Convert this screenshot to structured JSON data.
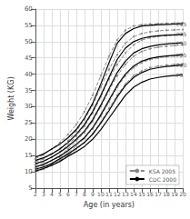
{
  "chart_data": {
    "type": "line",
    "xlabel": "Age (in years)",
    "ylabel": "Weight (KG)",
    "x": [
      2,
      3,
      4,
      5,
      6,
      7,
      8,
      9,
      10,
      11,
      12,
      13,
      14,
      15,
      16,
      17,
      18,
      19,
      20
    ],
    "xlim": [
      2,
      20
    ],
    "ylim": [
      5,
      60
    ],
    "xticks": [
      2,
      3,
      4,
      5,
      6,
      7,
      8,
      9,
      10,
      11,
      12,
      13,
      14,
      15,
      16,
      17,
      18,
      19,
      20
    ],
    "yticks": [
      5,
      10,
      15,
      20,
      25,
      30,
      35,
      40,
      45,
      50,
      55,
      60
    ],
    "grid": true,
    "legend": "lower right",
    "series": [
      {
        "name": "KSA 2005",
        "color": "#888888",
        "line_style": "dashed",
        "marker": "dot",
        "values": [
          14.0,
          15.2,
          17.0,
          19.0,
          21.5,
          24.5,
          28.5,
          33.5,
          39.5,
          45.5,
          50.5,
          53.5,
          54.8,
          55.2,
          55.4,
          55.5,
          55.6,
          55.7,
          55.8
        ]
      },
      {
        "name": "CDC 2000",
        "color": "#000000",
        "line_style": "solid",
        "values": [
          14.5,
          15.5,
          17.0,
          18.5,
          20.5,
          23.0,
          26.5,
          31.0,
          37.0,
          43.5,
          49.5,
          52.5,
          54.0,
          54.8,
          55.0,
          55.2,
          55.3,
          55.4,
          55.5
        ]
      },
      {
        "name": "KSA 2005",
        "color": "#888888",
        "line_style": "dashed",
        "marker": "dot",
        "values": [
          13.0,
          14.0,
          15.5,
          17.2,
          19.5,
          22.5,
          26.0,
          30.5,
          36.0,
          41.5,
          46.0,
          49.5,
          51.5,
          52.5,
          53.0,
          53.3,
          53.5,
          53.6,
          53.7
        ]
      },
      {
        "name": "CDC 2000",
        "color": "#000000",
        "line_style": "solid",
        "values": [
          13.5,
          14.3,
          15.5,
          17.0,
          19.0,
          21.5,
          24.5,
          28.5,
          33.5,
          39.0,
          44.5,
          48.0,
          50.0,
          51.0,
          51.5,
          51.8,
          52.0,
          52.1,
          52.2
        ]
      },
      {
        "name": "KSA 2005",
        "color": "#888888",
        "line_style": "dashed",
        "marker": "dot",
        "values": [
          12.0,
          13.0,
          14.5,
          16.2,
          18.2,
          21.0,
          24.0,
          28.0,
          33.0,
          38.5,
          43.0,
          46.5,
          49.0,
          50.5,
          51.2,
          51.6,
          51.8,
          52.0,
          52.1
        ]
      },
      {
        "name": "CDC 2000",
        "color": "#000000",
        "line_style": "solid",
        "values": [
          12.5,
          13.3,
          14.5,
          16.0,
          17.8,
          20.0,
          22.5,
          26.0,
          30.5,
          35.5,
          40.5,
          44.0,
          46.5,
          47.8,
          48.5,
          49.0,
          49.3,
          49.5,
          49.6
        ]
      },
      {
        "name": "KSA 2005",
        "color": "#888888",
        "line_style": "dashed",
        "marker": "dot",
        "values": [
          11.2,
          12.0,
          13.5,
          15.0,
          17.0,
          19.5,
          22.0,
          25.5,
          30.0,
          35.0,
          39.5,
          43.0,
          45.5,
          47.0,
          47.8,
          48.3,
          48.6,
          48.8,
          49.0
        ]
      },
      {
        "name": "CDC 2000",
        "color": "#000000",
        "line_style": "solid",
        "values": [
          11.5,
          12.3,
          13.5,
          14.8,
          16.5,
          18.5,
          20.5,
          23.5,
          27.5,
          32.0,
          36.5,
          40.0,
          42.5,
          44.0,
          44.8,
          45.3,
          45.6,
          45.8,
          46.0
        ]
      },
      {
        "name": "KSA 2005",
        "color": "#888888",
        "line_style": "dashed",
        "marker": "dot",
        "values": [
          10.5,
          11.3,
          12.5,
          14.2,
          15.8,
          18.0,
          20.2,
          23.2,
          27.0,
          31.5,
          36.0,
          39.5,
          42.0,
          43.5,
          44.5,
          45.0,
          45.4,
          45.6,
          45.8
        ]
      },
      {
        "name": "CDC 2000",
        "color": "#000000",
        "line_style": "solid",
        "values": [
          10.8,
          11.5,
          12.5,
          14.0,
          15.5,
          17.2,
          19.0,
          21.5,
          25.0,
          28.8,
          33.0,
          36.5,
          39.0,
          40.5,
          41.5,
          42.0,
          42.4,
          42.6,
          42.8
        ]
      },
      {
        "name": "KSA 2005",
        "color": "#888888",
        "line_style": "dashed",
        "marker": "dot",
        "values": [
          10.0,
          10.8,
          12.0,
          13.5,
          15.2,
          17.0,
          19.0,
          21.8,
          25.2,
          29.5,
          33.5,
          37.0,
          39.5,
          41.0,
          42.0,
          42.5,
          42.8,
          43.0,
          43.2
        ]
      },
      {
        "name": "CDC 2000",
        "color": "#000000",
        "line_style": "solid",
        "values": [
          10.2,
          11.0,
          12.0,
          13.2,
          14.8,
          16.2,
          17.8,
          20.0,
          23.0,
          26.5,
          30.0,
          33.5,
          36.0,
          37.5,
          38.5,
          39.0,
          39.4,
          39.6,
          39.8
        ]
      }
    ],
    "annotations": [
      {
        "text": "P95",
        "x": 19,
        "y": 55.5
      },
      {
        "text": "P75",
        "x": 19,
        "y": 52.2
      },
      {
        "text": "P50",
        "x": 19,
        "y": 49.6
      },
      {
        "text": "P25",
        "x": 19,
        "y": 46.0
      },
      {
        "text": "P10",
        "x": 19,
        "y": 42.8
      },
      {
        "text": "P5",
        "x": 19,
        "y": 39.8
      }
    ]
  }
}
